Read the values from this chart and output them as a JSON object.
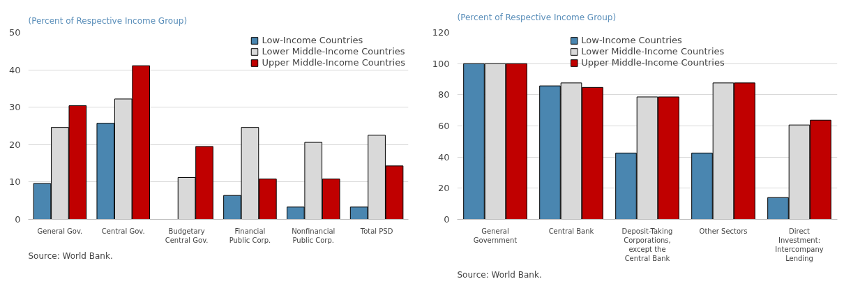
{
  "chart_data": [
    {
      "type": "bar",
      "subtitle": "(Percent of Respective Income Group)",
      "categories": [
        "General Gov.",
        "Central Gov.",
        "Budgetary\nCentral Gov.",
        "Financial\nPublic Corp.",
        "Nonfinancial\nPublic Corp.",
        "Total PSD"
      ],
      "series": [
        {
          "name": "Low-Income Countries",
          "color": "#4a86b0",
          "values": [
            9.6,
            25.7,
            null,
            6.4,
            3.3,
            3.3
          ]
        },
        {
          "name": "Lower Middle-Income Countries",
          "color": "#d9d9d9",
          "values": [
            24.6,
            32.2,
            11.2,
            24.6,
            20.6,
            22.5
          ]
        },
        {
          "name": "Upper Middle-Income Countries",
          "color": "#c00000",
          "values": [
            30.4,
            41.1,
            19.5,
            10.8,
            10.8,
            14.3
          ]
        }
      ],
      "ylim": [
        0,
        50
      ],
      "yticks": [
        0,
        10,
        20,
        30,
        40,
        50
      ],
      "grid": "y",
      "legend": "top right",
      "annotations": [
        "Source: World Bank."
      ]
    },
    {
      "type": "bar",
      "subtitle": "(Percent of Respective Income Group)",
      "categories": [
        "General\nGovernment",
        "Central Bank",
        "Deposit-Taking\nCorporations,\nexcept the\nCentral Bank",
        "Other Sectors",
        "Direct\nInvestment:\nIntercompany\nLending"
      ],
      "series": [
        {
          "name": "Low-Income Countries",
          "color": "#4a86b0",
          "values": [
            100,
            85.7,
            42.6,
            42.6,
            14.0
          ]
        },
        {
          "name": "Lower Middle-Income Countries",
          "color": "#d9d9d9",
          "values": [
            100,
            87.6,
            78.6,
            87.6,
            60.6
          ]
        },
        {
          "name": "Upper Middle-Income Countries",
          "color": "#c00000",
          "values": [
            100,
            84.7,
            78.6,
            87.6,
            63.7
          ]
        }
      ],
      "ylim": [
        0,
        120
      ],
      "yticks": [
        0,
        20,
        40,
        60,
        80,
        100,
        120
      ],
      "grid": "y",
      "legend": "top",
      "annotations": [
        "Source: World Bank."
      ]
    }
  ]
}
